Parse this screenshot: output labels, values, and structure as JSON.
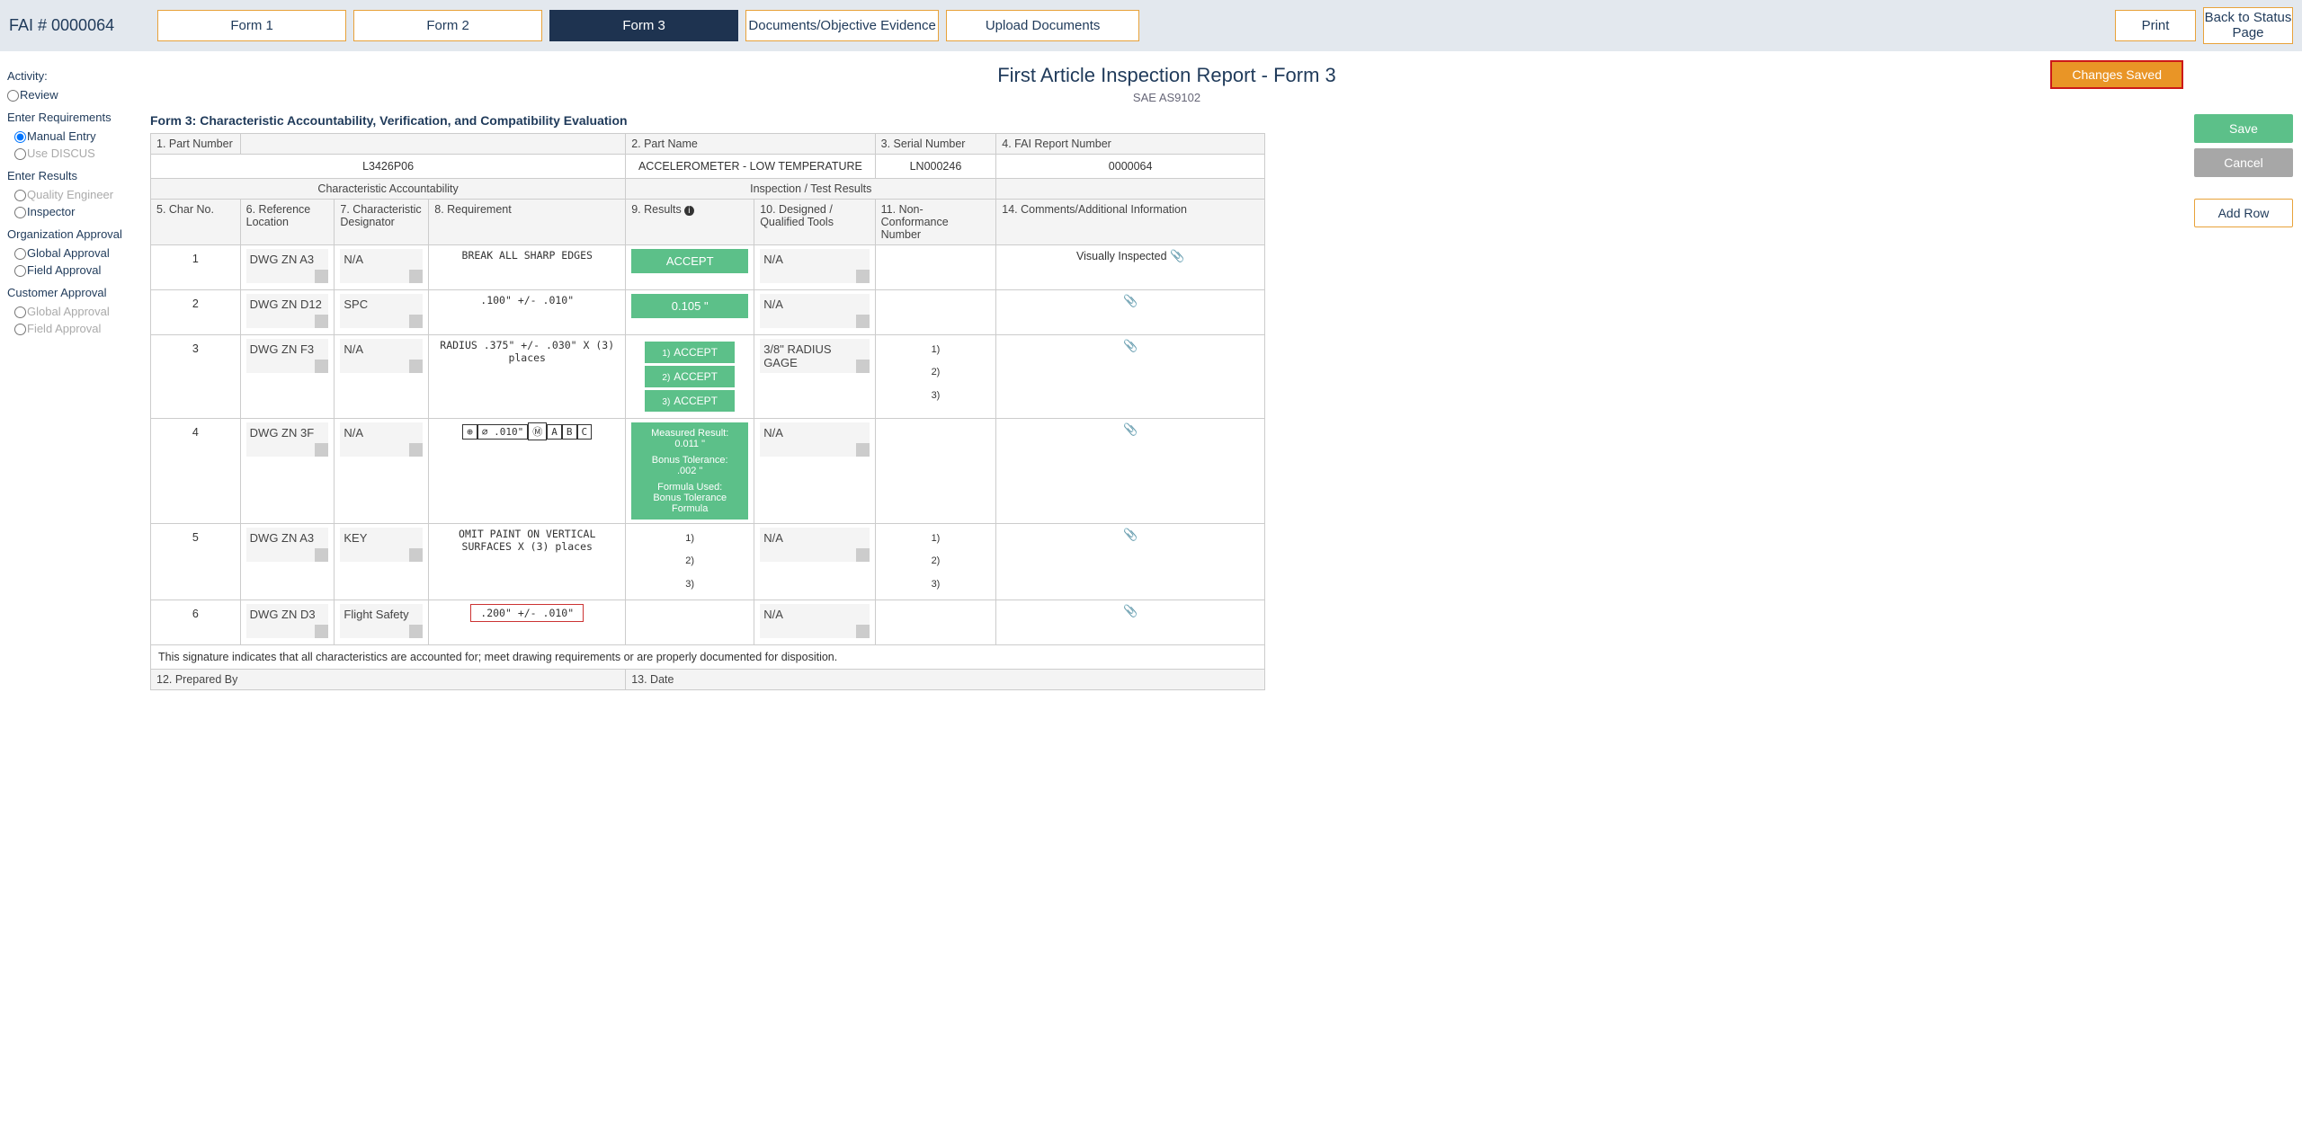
{
  "header": {
    "fai_label": "FAI # 0000064",
    "tabs": [
      "Form 1",
      "Form 2",
      "Form 3",
      "Documents/Objective Evidence",
      "Upload Documents"
    ],
    "active_tab": 2,
    "print": "Print",
    "back": "Back to Status Page",
    "saved_badge": "Changes Saved"
  },
  "title": "First Article Inspection Report - Form 3",
  "subtitle": "SAE AS9102",
  "form_heading": "Form 3: Characteristic Accountability, Verification, and Compatibility Evaluation",
  "sidebar": {
    "activity": "Activity:",
    "review": "Review",
    "enter_req": "Enter Requirements",
    "manual": "Manual Entry",
    "discus": "Use DISCUS",
    "enter_res": "Enter Results",
    "quality": "Quality Engineer",
    "inspector": "Inspector",
    "org_appr": "Organization Approval",
    "global": "Global Approval",
    "field": "Field Approval",
    "cust_appr": "Customer Approval",
    "c_global": "Global Approval",
    "c_field": "Field Approval"
  },
  "top_fields": {
    "h1": "1. Part Number",
    "v1": "L3426P06",
    "h2": "2. Part Name",
    "v2": "ACCELEROMETER - LOW TEMPERATURE",
    "h3": "3. Serial Number",
    "v3": "LN000246",
    "h4": "4. FAI Report Number",
    "v4": "0000064"
  },
  "section_labels": {
    "ca": "Characteristic Accountability",
    "itr": "Inspection / Test Results"
  },
  "col": {
    "c5": "5. Char No.",
    "c6": "6. Reference Location",
    "c7": "7. Characteristic Designator",
    "c8": "8. Requirement",
    "c9": "9. Results",
    "c10": "10. Designed / Qualified Tools",
    "c11": "11. Non-Conformance Number",
    "c14": "14. Comments/Additional Information"
  },
  "rows": [
    {
      "n": "1",
      "ref": "DWG ZN A3",
      "des": "N/A",
      "req": "BREAK ALL SHARP EDGES",
      "res_type": "accept",
      "res": "ACCEPT",
      "tools": "N/A",
      "nonconf": "",
      "comment": "Visually Inspected"
    },
    {
      "n": "2",
      "ref": "DWG ZN D12",
      "des": "SPC",
      "req": ".100\" +/- .010\"",
      "res_type": "accept",
      "res": "0.105 \"",
      "tools": "N/A",
      "nonconf": "",
      "comment": ""
    },
    {
      "n": "3",
      "ref": "DWG ZN F3",
      "des": "N/A",
      "req": "RADIUS .375\" +/- .030\" X (3) places",
      "res_type": "multi",
      "res_list": [
        "ACCEPT",
        "ACCEPT",
        "ACCEPT"
      ],
      "tools": "3/8\" RADIUS GAGE",
      "nonconf_list": [
        "1)",
        "2)",
        "3)"
      ],
      "comment": ""
    },
    {
      "n": "4",
      "ref": "DWG ZN 3F",
      "des": "N/A",
      "req_gdnt": [
        "⊕",
        "∅ .010\"",
        "Ⓜ",
        "A",
        "B",
        "C"
      ],
      "res_type": "box",
      "res_box": {
        "l1": "Measured Result:",
        "v1": "0.011 \"",
        "l2": "Bonus Tolerance:",
        "v2": ".002 \"",
        "l3": "Formula Used:",
        "v3": "Bonus Tolerance Formula"
      },
      "tools": "N/A",
      "nonconf": "",
      "comment": ""
    },
    {
      "n": "5",
      "ref": "DWG ZN A3",
      "des": "KEY",
      "req": "OMIT PAINT ON VERTICAL SURFACES X (3) places",
      "res_type": "nums",
      "res_nums": [
        "1)",
        "2)",
        "3)"
      ],
      "tools": "N/A",
      "nonconf_list": [
        "1)",
        "2)",
        "3)"
      ],
      "comment": ""
    },
    {
      "n": "6",
      "ref": "DWG ZN D3",
      "des": "Flight Safety",
      "req_boxed": ".200\" +/- .010\"",
      "res_type": "empty",
      "tools": "N/A",
      "nonconf": "",
      "comment": ""
    }
  ],
  "footer": {
    "sig": "This signature indicates that all characteristics are accounted for; meet drawing requirements or are properly documented for disposition.",
    "prep": "12. Prepared By",
    "date": "13. Date"
  },
  "actions": {
    "save": "Save",
    "cancel": "Cancel",
    "add": "Add Row"
  }
}
